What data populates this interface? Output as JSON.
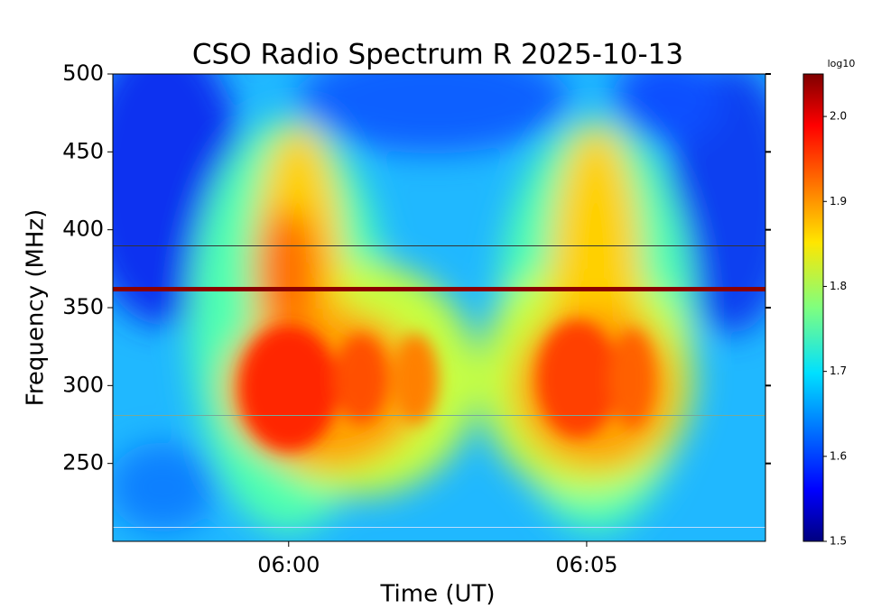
{
  "chart_data": {
    "type": "spectrogram",
    "title": "CSO Radio Spectrum R 2025-10-13",
    "xlabel": "Time (UT)",
    "ylabel": "Frequency (MHz)",
    "xlim": [
      "05:57:03",
      "06:08:00"
    ],
    "xticks": [
      "06:00",
      "06:05"
    ],
    "ylim": [
      200,
      500
    ],
    "yticks": [
      250,
      300,
      350,
      400,
      450,
      500
    ],
    "colormap": "jet",
    "colorbar": {
      "label": "log10",
      "lim": [
        1.5,
        2.05
      ],
      "ticks": [
        1.5,
        1.6,
        1.7,
        1.8,
        1.9,
        {
          "value": 2,
          "label": "2.0"
        }
      ]
    }
  }
}
